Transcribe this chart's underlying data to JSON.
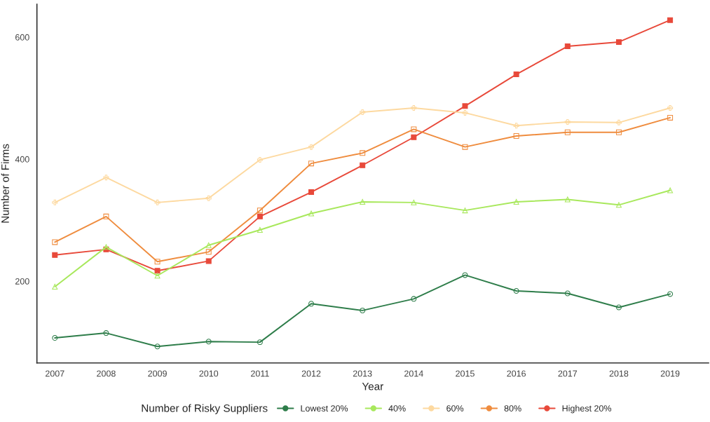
{
  "chart_data": {
    "type": "line",
    "xlabel": "Year",
    "ylabel": "Number of Firms",
    "legend_title": "Number of Risky Suppliers",
    "categories": [
      "2007",
      "2008",
      "2009",
      "2010",
      "2011",
      "2012",
      "2013",
      "2014",
      "2015",
      "2016",
      "2017",
      "2018",
      "2019"
    ],
    "series": [
      {
        "name": "Lowest 20%",
        "color": "#2e7d4a",
        "marker": "circle",
        "values": [
          107,
          115,
          93,
          101,
          100,
          163,
          152,
          171,
          210,
          184,
          180,
          157,
          179
        ]
      },
      {
        "name": "40%",
        "color": "#a8e85c",
        "marker": "triangle",
        "values": [
          191,
          256,
          209,
          259,
          284,
          311,
          330,
          329,
          316,
          330,
          334,
          325,
          349
        ]
      },
      {
        "name": "60%",
        "color": "#fdd9a0",
        "marker": "cross",
        "values": [
          329,
          370,
          329,
          336,
          399,
          420,
          477,
          484,
          476,
          455,
          461,
          460,
          484
        ]
      },
      {
        "name": "80%",
        "color": "#ef8c3e",
        "marker": "square",
        "values": [
          264,
          306,
          232,
          248,
          316,
          393,
          410,
          449,
          420,
          438,
          444,
          444,
          468
        ]
      },
      {
        "name": "Highest 20%",
        "color": "#e8493a",
        "marker": "square",
        "values": [
          243,
          252,
          217,
          233,
          306,
          346,
          390,
          436,
          487,
          539,
          585,
          592,
          628
        ]
      }
    ],
    "ylim": [
      66,
      654
    ],
    "yticks": [
      200,
      400,
      600
    ],
    "grid": false,
    "legend": "bottom"
  }
}
